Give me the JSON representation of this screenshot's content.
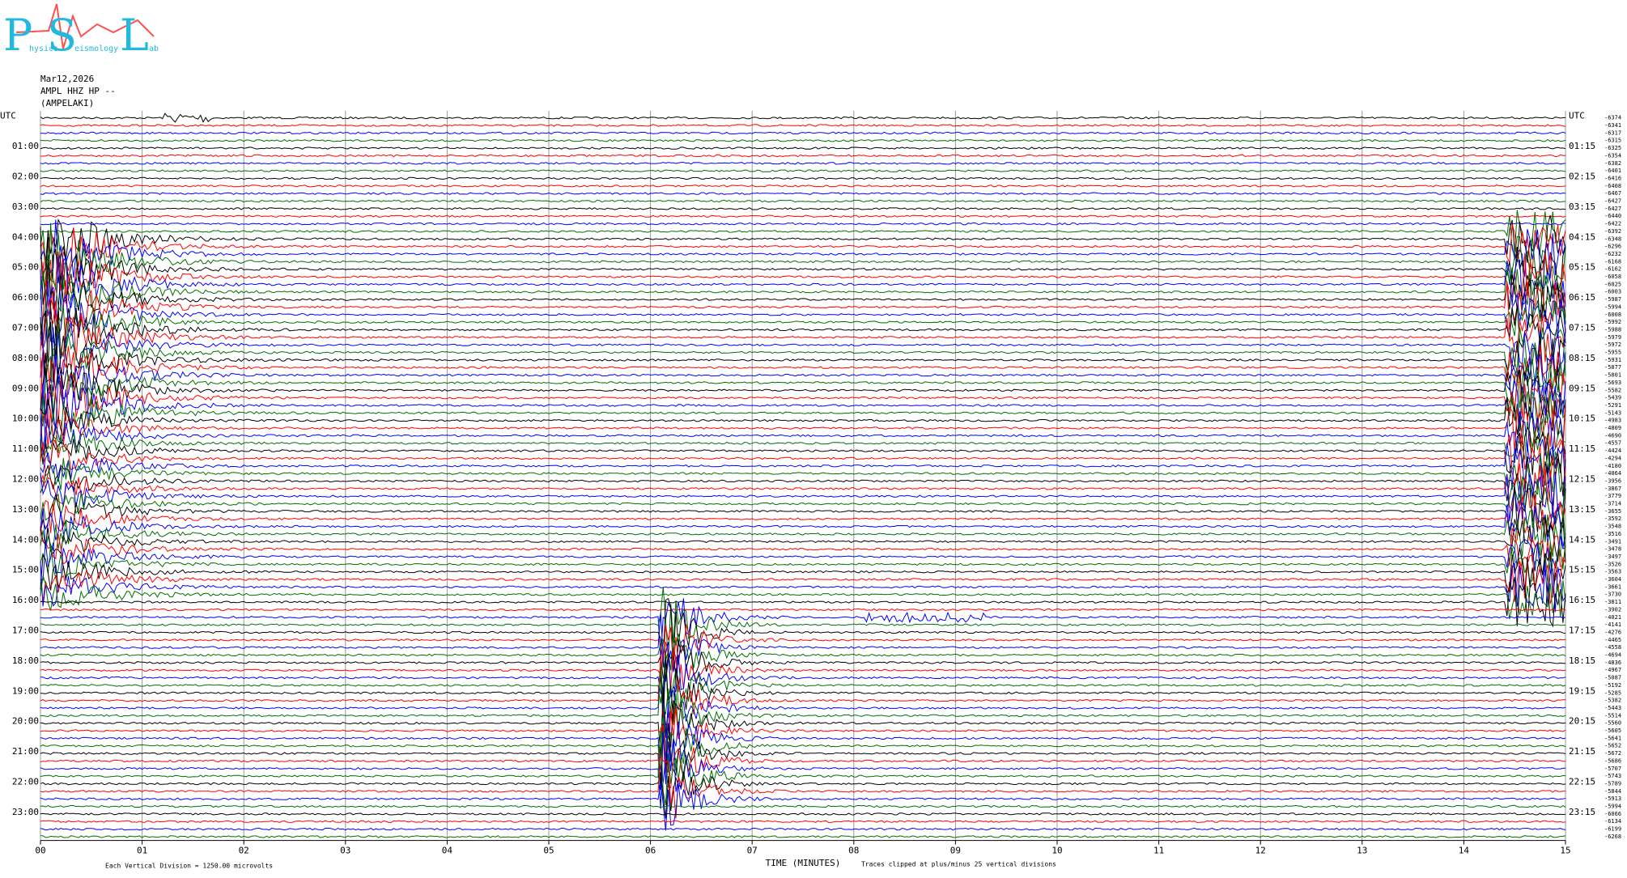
{
  "logo": {
    "letters": [
      "P",
      "S",
      "L"
    ],
    "words": [
      "hysics",
      "eismology",
      "ab"
    ]
  },
  "header": {
    "date": "Mar12,2026",
    "station": "AMPL HHZ HP --",
    "site": "(AMPELAKI)"
  },
  "left_labels": [
    "UTC",
    "01:00",
    "02:00",
    "03:00",
    "04:00",
    "05:00",
    "06:00",
    "07:00",
    "08:00",
    "09:00",
    "10:00",
    "11:00",
    "12:00",
    "13:00",
    "14:00",
    "15:00",
    "16:00",
    "17:00",
    "18:00",
    "19:00",
    "20:00",
    "21:00",
    "22:00",
    "23:00"
  ],
  "right_labels": [
    "UTC",
    "01:15",
    "02:15",
    "03:15",
    "04:15",
    "05:15",
    "06:15",
    "07:15",
    "08:15",
    "09:15",
    "10:15",
    "11:15",
    "12:15",
    "13:15",
    "14:15",
    "15:15",
    "16:15",
    "17:15",
    "18:15",
    "19:15",
    "20:15",
    "21:15",
    "22:15",
    "23:15"
  ],
  "offsets": [
    "-6374",
    "-6341",
    "-6317",
    "-6315",
    "-6325",
    "-6354",
    "-6382",
    "-6401",
    "-6416",
    "-6408",
    "-6467",
    "-6427",
    "-6427",
    "-6440",
    "-6422",
    "-6392",
    "-6348",
    "-6296",
    "-6232",
    "-6168",
    "-6162",
    "-6058",
    "-6025",
    "-6003",
    "-5987",
    "-5994",
    "-6008",
    "-5992",
    "-5988",
    "-5979",
    "-5972",
    "-5955",
    "-5931",
    "-5877",
    "-5801",
    "-5693",
    "-5582",
    "-5439",
    "-5291",
    "-5143",
    "-4983",
    "-4809",
    "-4690",
    "-4557",
    "-4424",
    "-4294",
    "-4180",
    "-4064",
    "-3956",
    "-3867",
    "-3779",
    "-3714",
    "-3655",
    "-3592",
    "-3548",
    "-3516",
    "-3491",
    "-3478",
    "-3497",
    "-3526",
    "-3563",
    "-3604",
    "-3661",
    "-3730",
    "-3811",
    "-3902",
    "-4021",
    "-4141",
    "-4276",
    "-4465",
    "-4558",
    "-4694",
    "-4836",
    "-4967",
    "-5087",
    "-5192",
    "-5285",
    "-5382",
    "-5443",
    "-5514",
    "-5560",
    "-5605",
    "-5641",
    "-5652",
    "-5672",
    "-5686",
    "-5707",
    "-5743",
    "-5789",
    "-5844",
    "-5913",
    "-5994",
    "-6066",
    "-6134",
    "-6199",
    "-6268"
  ],
  "x_labels": [
    "00",
    "01",
    "02",
    "03",
    "04",
    "05",
    "06",
    "07",
    "08",
    "09",
    "10",
    "11",
    "12",
    "13",
    "14",
    "15"
  ],
  "trace_colors": [
    "#000000",
    "#ff0000",
    "#0000ff",
    "#007000"
  ],
  "footer": {
    "scale": "Each Vertical Division = 1250.00 microvolts",
    "axis_title": "TIME (MINUTES)",
    "clip_note": "Traces clipped at plus/minus 25 vertical divisions"
  }
}
